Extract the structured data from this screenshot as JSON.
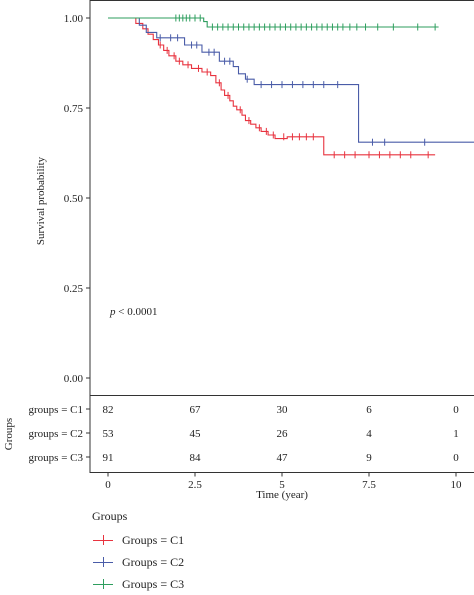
{
  "chart_data": {
    "type": "line",
    "subtype": "kaplan-meier",
    "ylabel": "Survival probability",
    "xlabel": "Time (year)",
    "xlim": [
      0,
      10.5
    ],
    "ylim": [
      0,
      1.0
    ],
    "x_ticks": [
      "0",
      "2.5",
      "5",
      "7.5",
      "10"
    ],
    "y_ticks": [
      "0.00",
      "0.25",
      "0.50",
      "0.75",
      "1.00"
    ],
    "annotation": {
      "p_symbol": "p",
      "p_rest": " < 0.0001"
    },
    "grid": false,
    "series": [
      {
        "name": "Groups = C1",
        "color": "#e8333f",
        "steps": [
          [
            0,
            1.0
          ],
          [
            0.8,
            0.985
          ],
          [
            1.0,
            0.97
          ],
          [
            1.15,
            0.955
          ],
          [
            1.3,
            0.94
          ],
          [
            1.45,
            0.925
          ],
          [
            1.6,
            0.91
          ],
          [
            1.75,
            0.895
          ],
          [
            1.95,
            0.88
          ],
          [
            2.15,
            0.87
          ],
          [
            2.4,
            0.86
          ],
          [
            2.7,
            0.85
          ],
          [
            2.95,
            0.84
          ],
          [
            3.1,
            0.82
          ],
          [
            3.25,
            0.8
          ],
          [
            3.35,
            0.785
          ],
          [
            3.5,
            0.77
          ],
          [
            3.6,
            0.755
          ],
          [
            3.7,
            0.745
          ],
          [
            3.85,
            0.73
          ],
          [
            3.95,
            0.715
          ],
          [
            4.1,
            0.705
          ],
          [
            4.25,
            0.695
          ],
          [
            4.4,
            0.685
          ],
          [
            4.6,
            0.675
          ],
          [
            4.8,
            0.665
          ],
          [
            5.15,
            0.67
          ],
          [
            6.2,
            0.62
          ],
          [
            9.4,
            0.62
          ]
        ],
        "censors": [
          [
            1.5,
            0.925
          ],
          [
            1.7,
            0.91
          ],
          [
            1.9,
            0.895
          ],
          [
            2.05,
            0.88
          ],
          [
            2.3,
            0.87
          ],
          [
            2.6,
            0.86
          ],
          [
            2.85,
            0.85
          ],
          [
            3.2,
            0.82
          ],
          [
            3.45,
            0.785
          ],
          [
            3.8,
            0.745
          ],
          [
            4.05,
            0.715
          ],
          [
            4.35,
            0.695
          ],
          [
            4.55,
            0.685
          ],
          [
            4.75,
            0.675
          ],
          [
            5.05,
            0.67
          ],
          [
            5.3,
            0.67
          ],
          [
            5.5,
            0.67
          ],
          [
            5.7,
            0.67
          ],
          [
            5.9,
            0.67
          ],
          [
            6.5,
            0.62
          ],
          [
            6.8,
            0.62
          ],
          [
            7.1,
            0.62
          ],
          [
            7.5,
            0.62
          ],
          [
            7.8,
            0.62
          ],
          [
            8.1,
            0.62
          ],
          [
            8.4,
            0.62
          ],
          [
            8.7,
            0.62
          ],
          [
            9.2,
            0.62
          ]
        ]
      },
      {
        "name": "Groups = C2",
        "color": "#4a5ca8",
        "steps": [
          [
            0,
            1.0
          ],
          [
            0.9,
            0.98
          ],
          [
            1.1,
            0.96
          ],
          [
            1.4,
            0.945
          ],
          [
            2.2,
            0.925
          ],
          [
            2.7,
            0.905
          ],
          [
            3.2,
            0.88
          ],
          [
            3.6,
            0.865
          ],
          [
            3.75,
            0.845
          ],
          [
            3.95,
            0.83
          ],
          [
            4.2,
            0.815
          ],
          [
            7.2,
            0.815
          ],
          [
            7.2,
            0.655
          ],
          [
            10.6,
            0.655
          ]
        ],
        "censors": [
          [
            1.5,
            0.945
          ],
          [
            1.8,
            0.945
          ],
          [
            2.0,
            0.945
          ],
          [
            2.4,
            0.925
          ],
          [
            2.55,
            0.925
          ],
          [
            2.9,
            0.905
          ],
          [
            3.05,
            0.905
          ],
          [
            3.35,
            0.88
          ],
          [
            3.5,
            0.88
          ],
          [
            4.0,
            0.83
          ],
          [
            4.4,
            0.815
          ],
          [
            4.7,
            0.815
          ],
          [
            5.0,
            0.815
          ],
          [
            5.3,
            0.815
          ],
          [
            5.6,
            0.815
          ],
          [
            5.9,
            0.815
          ],
          [
            6.2,
            0.815
          ],
          [
            6.6,
            0.815
          ],
          [
            7.6,
            0.655
          ],
          [
            7.95,
            0.655
          ],
          [
            9.1,
            0.655
          ]
        ]
      },
      {
        "name": "Groups = C3",
        "color": "#2e9e5e",
        "steps": [
          [
            0,
            1.0
          ],
          [
            2.7,
            1.0
          ],
          [
            2.75,
            0.99
          ],
          [
            2.85,
            0.975
          ],
          [
            9.5,
            0.975
          ]
        ],
        "censors": [
          [
            1.95,
            1.0
          ],
          [
            2.05,
            1.0
          ],
          [
            2.15,
            1.0
          ],
          [
            2.25,
            1.0
          ],
          [
            2.35,
            1.0
          ],
          [
            2.5,
            1.0
          ],
          [
            2.65,
            1.0
          ],
          [
            3.0,
            0.975
          ],
          [
            3.15,
            0.975
          ],
          [
            3.3,
            0.975
          ],
          [
            3.45,
            0.975
          ],
          [
            3.6,
            0.975
          ],
          [
            3.75,
            0.975
          ],
          [
            3.9,
            0.975
          ],
          [
            4.05,
            0.975
          ],
          [
            4.2,
            0.975
          ],
          [
            4.35,
            0.975
          ],
          [
            4.5,
            0.975
          ],
          [
            4.65,
            0.975
          ],
          [
            4.8,
            0.975
          ],
          [
            4.95,
            0.975
          ],
          [
            5.1,
            0.975
          ],
          [
            5.25,
            0.975
          ],
          [
            5.4,
            0.975
          ],
          [
            5.55,
            0.975
          ],
          [
            5.7,
            0.975
          ],
          [
            5.85,
            0.975
          ],
          [
            6.0,
            0.975
          ],
          [
            6.15,
            0.975
          ],
          [
            6.3,
            0.975
          ],
          [
            6.45,
            0.975
          ],
          [
            6.6,
            0.975
          ],
          [
            6.75,
            0.975
          ],
          [
            6.95,
            0.975
          ],
          [
            7.15,
            0.975
          ],
          [
            7.4,
            0.975
          ],
          [
            7.75,
            0.975
          ],
          [
            8.2,
            0.975
          ],
          [
            8.9,
            0.975
          ],
          [
            9.4,
            0.975
          ]
        ]
      }
    ],
    "risk_table": {
      "title": "Groups",
      "rows": [
        {
          "label": "groups = C1",
          "values": [
            "82",
            "67",
            "30",
            "6",
            "0"
          ]
        },
        {
          "label": "groups = C2",
          "values": [
            "53",
            "45",
            "26",
            "4",
            "1"
          ]
        },
        {
          "label": "groups = C3",
          "values": [
            "91",
            "84",
            "47",
            "9",
            "0"
          ]
        }
      ]
    },
    "legend": {
      "title": "Groups",
      "placement": "bottom-left",
      "items": [
        "Groups = C1",
        "Groups = C2",
        "Groups = C3"
      ]
    }
  }
}
